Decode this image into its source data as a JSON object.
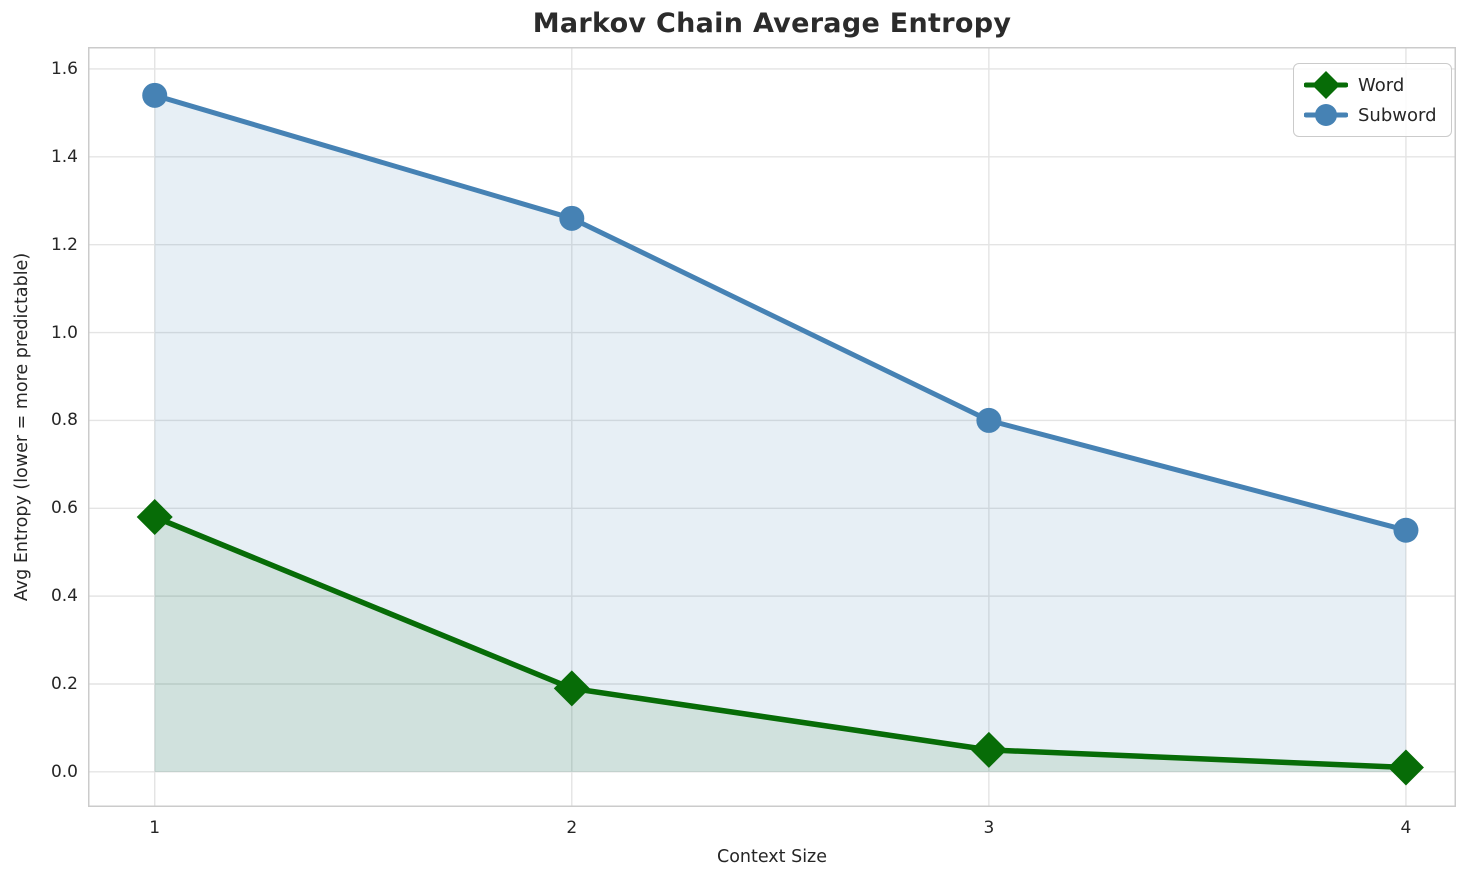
{
  "chart_data": {
    "type": "line",
    "title": "Markov Chain Average Entropy",
    "xlabel": "Context Size",
    "ylabel": "Avg Entropy (lower = more predictable)",
    "x": [
      1,
      2,
      3,
      4
    ],
    "series": [
      {
        "name": "Word",
        "values": [
          0.58,
          0.19,
          0.05,
          0.01
        ],
        "color": "#076c07",
        "marker": "diamond",
        "line_width": 5.5,
        "fill_to_zero": true,
        "fill_alpha": 0.1
      },
      {
        "name": "Subword",
        "values": [
          1.54,
          1.26,
          0.8,
          0.55
        ],
        "color": "#4682b4",
        "marker": "circle",
        "line_width": 5.0,
        "fill_to_zero": true,
        "fill_alpha": 0.13
      }
    ],
    "xticks": {
      "values": [
        1,
        2,
        3,
        4
      ],
      "labels": [
        "1",
        "2",
        "3",
        "4"
      ]
    },
    "yticks": {
      "values": [
        0.0,
        0.2,
        0.4,
        0.6,
        0.8,
        1.0,
        1.2,
        1.4,
        1.6
      ],
      "labels": [
        "0.0",
        "0.2",
        "0.4",
        "0.6",
        "0.8",
        "1.0",
        "1.2",
        "1.4",
        "1.6"
      ]
    },
    "xlim": [
      0.84,
      4.12
    ],
    "ylim": [
      -0.08,
      1.65
    ],
    "grid": "on",
    "legend": {
      "position": "upper right",
      "entries": [
        "Word",
        "Subword"
      ]
    }
  },
  "style_colors": {
    "grid": "#e4e4e4",
    "spine": "#cbcbcb",
    "tick_text": "#262626",
    "title_text": "#2b2b2b"
  }
}
